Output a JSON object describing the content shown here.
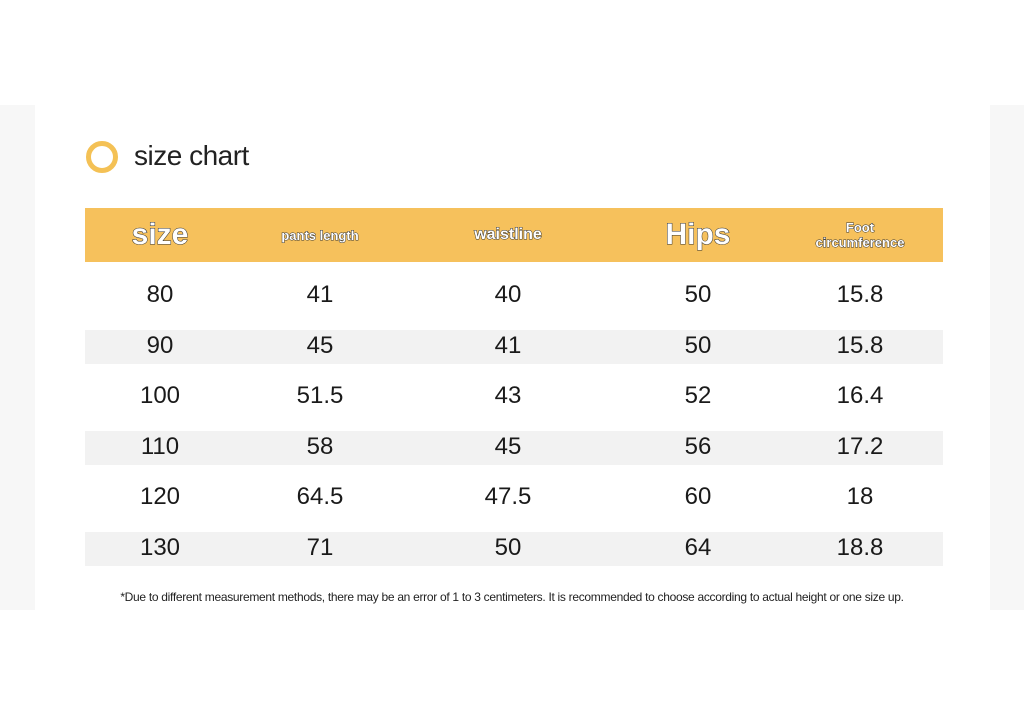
{
  "title": "size chart",
  "table": {
    "header": [
      "size",
      "pants length",
      "waistline",
      "Hips",
      "Foot circumference"
    ],
    "rows": [
      [
        "80",
        "41",
        "40",
        "50",
        "15.8"
      ],
      [
        "90",
        "45",
        "41",
        "50",
        "15.8"
      ],
      [
        "100",
        "51.5",
        "43",
        "52",
        "16.4"
      ],
      [
        "110",
        "58",
        "45",
        "56",
        "17.2"
      ],
      [
        "120",
        "64.5",
        "47.5",
        "60",
        "18"
      ],
      [
        "130",
        "71",
        "50",
        "64",
        "18.8"
      ]
    ]
  },
  "footnote": "*Due to different measurement methods, there may be an error of 1 to 3 centimeters. It is recommended to choose according to actual height or one size up."
}
